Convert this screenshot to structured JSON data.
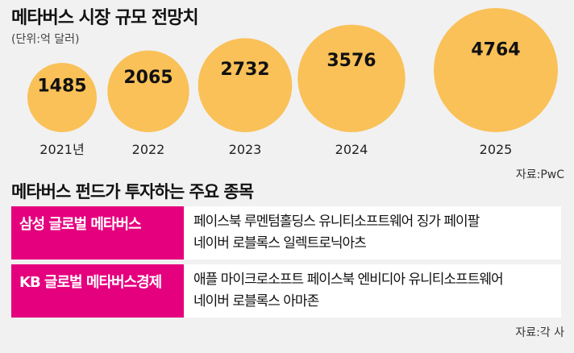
{
  "header": {
    "title": "메타버스 시장 규모 전망치",
    "unit": "(단위:억 달러)"
  },
  "chart_data": {
    "type": "bubble",
    "categories": [
      "2021년",
      "2022",
      "2023",
      "2024",
      "2025"
    ],
    "values": [
      1485,
      2065,
      2732,
      3576,
      4764
    ],
    "title": "메타버스 시장 규모 전망치",
    "unit": "(단위:억 달러)",
    "source": "자료:PwC"
  },
  "colors": {
    "bubble": "#f9c158",
    "accent": "#e5007e"
  },
  "funds": {
    "title": "메타버스 펀드가 투자하는 주요 종목",
    "items": [
      {
        "name": "삼성 글로벌 메타버스",
        "holdings_line1": "페이스북 루멘텀홀딩스 유니티소프트웨어 징가 페이팔",
        "holdings_line2": "네이버 로블록스 일렉트로닉아츠"
      },
      {
        "name": "KB 글로벌 메타버스경제",
        "holdings_line1": "애플 마이크로소프트 페이스북 엔비디아 유니티소프트웨어",
        "holdings_line2": "네이버 로블록스 아마존"
      }
    ],
    "source": "자료:각 사"
  }
}
